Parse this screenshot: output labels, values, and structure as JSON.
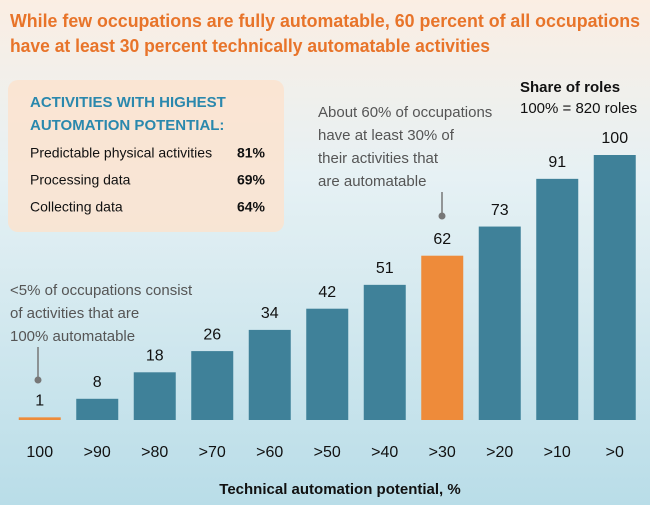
{
  "chart_data": {
    "type": "bar",
    "title_lines": [
      "While few occupations are fully automatable, 60 percent of all occupations",
      "have at least 30 percent technically automatable activities"
    ],
    "x_label": "Technical automation potential, %",
    "legend_title": "Share of roles",
    "legend_subtitle": "100% = 820 roles",
    "categories": [
      "100",
      ">90",
      ">80",
      ">70",
      ">60",
      ">50",
      ">40",
      ">30",
      ">20",
      ">10",
      ">0"
    ],
    "values": [
      1,
      8,
      18,
      26,
      34,
      42,
      51,
      62,
      73,
      91,
      100
    ],
    "colors": [
      "#ee8b3a",
      "#3f8199",
      "#3f8199",
      "#3f8199",
      "#3f8199",
      "#3f8199",
      "#3f8199",
      "#ee8b3a",
      "#3f8199",
      "#3f8199",
      "#3f8199"
    ],
    "ylim": [
      0,
      100
    ],
    "annotations": [
      {
        "lines": [
          "About 60% of occupations",
          "have at least 30% of",
          "their activities that",
          "are automatable"
        ]
      },
      {
        "lines": [
          "<5% of occupations consist",
          "of activities that are",
          "100% automatable"
        ]
      }
    ],
    "inset": {
      "title_lines": [
        "ACTIVITIES WITH HIGHEST",
        "AUTOMATION POTENTIAL:"
      ],
      "labels": [
        "Predictable physical activities",
        "Processing data",
        "Collecting data"
      ],
      "values": [
        81,
        69,
        64
      ],
      "value_labels": [
        "81%",
        "69%",
        "64%"
      ]
    }
  }
}
